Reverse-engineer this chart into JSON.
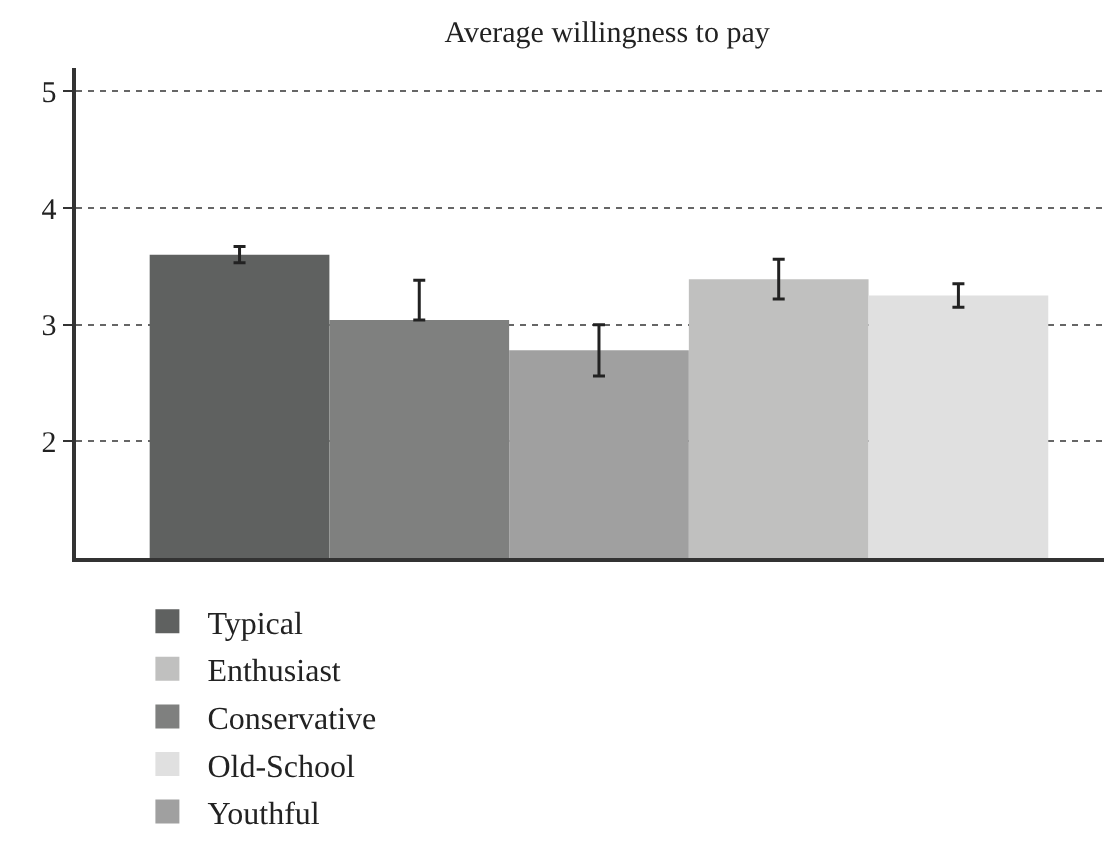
{
  "chart_data": {
    "type": "bar",
    "title": "Average willingness to pay",
    "categories": [
      null,
      null,
      null,
      null,
      null
    ],
    "series": [
      {
        "name": "Typical",
        "color": "#5f6160",
        "values": [
          3.6,
          null,
          null,
          null,
          null
        ],
        "errors": [
          0.07,
          null,
          null,
          null,
          null
        ]
      },
      {
        "name": "Conservative",
        "color": "#7f807f",
        "values": [
          null,
          3.04,
          null,
          null,
          null
        ],
        "errors": [
          null,
          [
            3.04,
            3.38
          ],
          null,
          null,
          null
        ]
      },
      {
        "name": "Youthful",
        "color": "#a0a0a0",
        "values": [
          null,
          null,
          2.78,
          null,
          null
        ],
        "errors": [
          null,
          null,
          0.22,
          null,
          null
        ]
      },
      {
        "name": "Enthusiast",
        "color": "#c0c0bf",
        "values": [
          null,
          null,
          null,
          3.39,
          null
        ],
        "errors": [
          null,
          null,
          null,
          0.17,
          null
        ]
      },
      {
        "name": "Old-School",
        "color": "#e0e0e0",
        "values": [
          null,
          null,
          null,
          null,
          3.25
        ],
        "errors": [
          null,
          null,
          null,
          null,
          0.1
        ]
      }
    ],
    "ylim": [
      1,
      5.2
    ],
    "yticks": [
      2,
      3,
      4,
      5
    ],
    "grid": "y",
    "legend": "bottom",
    "tick_labels": "y"
  }
}
